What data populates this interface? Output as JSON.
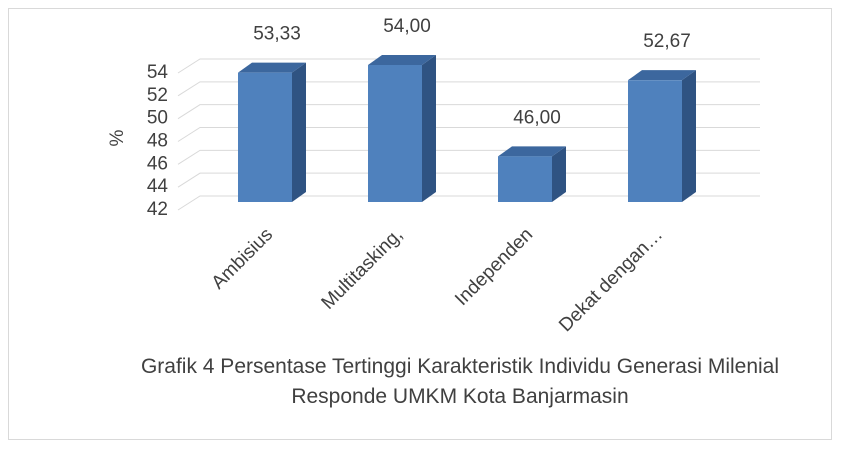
{
  "chart_data": {
    "type": "bar",
    "title": "Grafik 4 Persentase Tertinggi Karakteristik Individu Generasi Milenial Responde UMKM Kota Banjarmasin",
    "y_label": "%",
    "categories": [
      "Ambisius",
      "Multitasking,",
      "Independen",
      "Dekat dengan…"
    ],
    "values": [
      53.33,
      54,
      46,
      52.67
    ],
    "value_labels": [
      "53,33",
      "54,00",
      "46,00",
      "52,67"
    ],
    "color": "#4f81bd",
    "ylim": [
      42,
      54
    ],
    "yticks": [
      42,
      44,
      46,
      48,
      50,
      52,
      54
    ],
    "grid": true
  }
}
